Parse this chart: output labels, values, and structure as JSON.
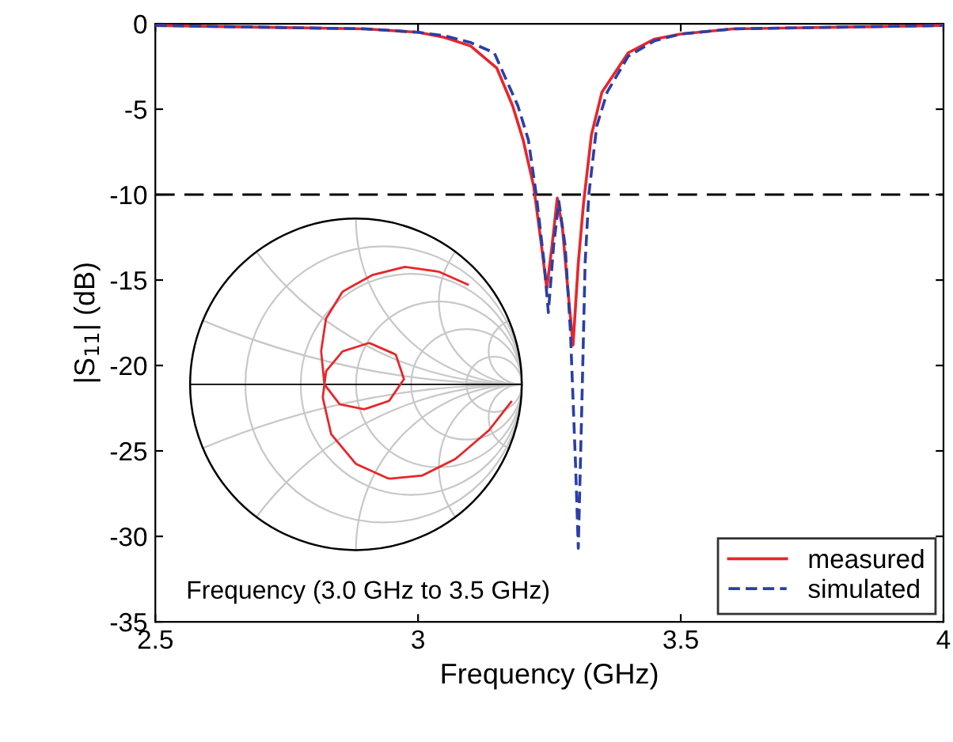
{
  "chart_data": {
    "type": "line",
    "xlabel": "Frequency (GHz)",
    "ylabel": "|S$_{11}$| (dB)",
    "xlim": [
      2.5,
      4
    ],
    "ylim": [
      -35,
      0
    ],
    "xticks": [
      2.5,
      3,
      3.5,
      4
    ],
    "yticks": [
      0,
      -5,
      -10,
      -15,
      -20,
      -25,
      -30,
      -35
    ],
    "grid": false,
    "legend": "bottom right",
    "marker": "none",
    "series": [
      {
        "name": "measured",
        "color": "#e8262a",
        "line_style": "solid",
        "x": [
          2.5,
          2.7,
          2.9,
          3.0,
          3.05,
          3.1,
          3.15,
          3.18,
          3.2,
          3.22,
          3.235,
          3.245,
          3.255,
          3.265,
          3.275,
          3.285,
          3.295,
          3.305,
          3.315,
          3.33,
          3.35,
          3.4,
          3.45,
          3.5,
          3.6,
          3.8,
          4.0
        ],
        "values": [
          -0.1,
          -0.2,
          -0.3,
          -0.5,
          -0.8,
          -1.3,
          -2.6,
          -4.8,
          -6.8,
          -9.5,
          -13,
          -15.5,
          -13,
          -10.2,
          -12,
          -15.5,
          -18.8,
          -14,
          -10.5,
          -6.5,
          -4,
          -1.7,
          -0.9,
          -0.6,
          -0.3,
          -0.2,
          -0.1
        ]
      },
      {
        "name": "simulated",
        "color": "#2a3fa8",
        "line_style": "dashed",
        "x": [
          2.5,
          2.7,
          2.9,
          3.0,
          3.05,
          3.1,
          3.145,
          3.19,
          3.21,
          3.225,
          3.24,
          3.248,
          3.258,
          3.268,
          3.28,
          3.29,
          3.3,
          3.305,
          3.312,
          3.318,
          3.325,
          3.34,
          3.36,
          3.4,
          3.45,
          3.5,
          3.6,
          3.8,
          4.0
        ],
        "values": [
          -0.1,
          -0.2,
          -0.3,
          -0.5,
          -0.7,
          -1.1,
          -1.7,
          -4.8,
          -6.8,
          -10,
          -14,
          -16.9,
          -13,
          -10.4,
          -13,
          -18,
          -26,
          -30.7,
          -22,
          -14,
          -10,
          -6,
          -4,
          -1.9,
          -1,
          -0.6,
          -0.3,
          -0.2,
          -0.1
        ]
      }
    ],
    "ref_lines": [
      {
        "axis": "y",
        "value": -10,
        "color": "#000000",
        "line_style": "dashed"
      }
    ],
    "annotations": [
      "Frequency (3.0 GHz to 3.5 GHz)"
    ]
  }
}
